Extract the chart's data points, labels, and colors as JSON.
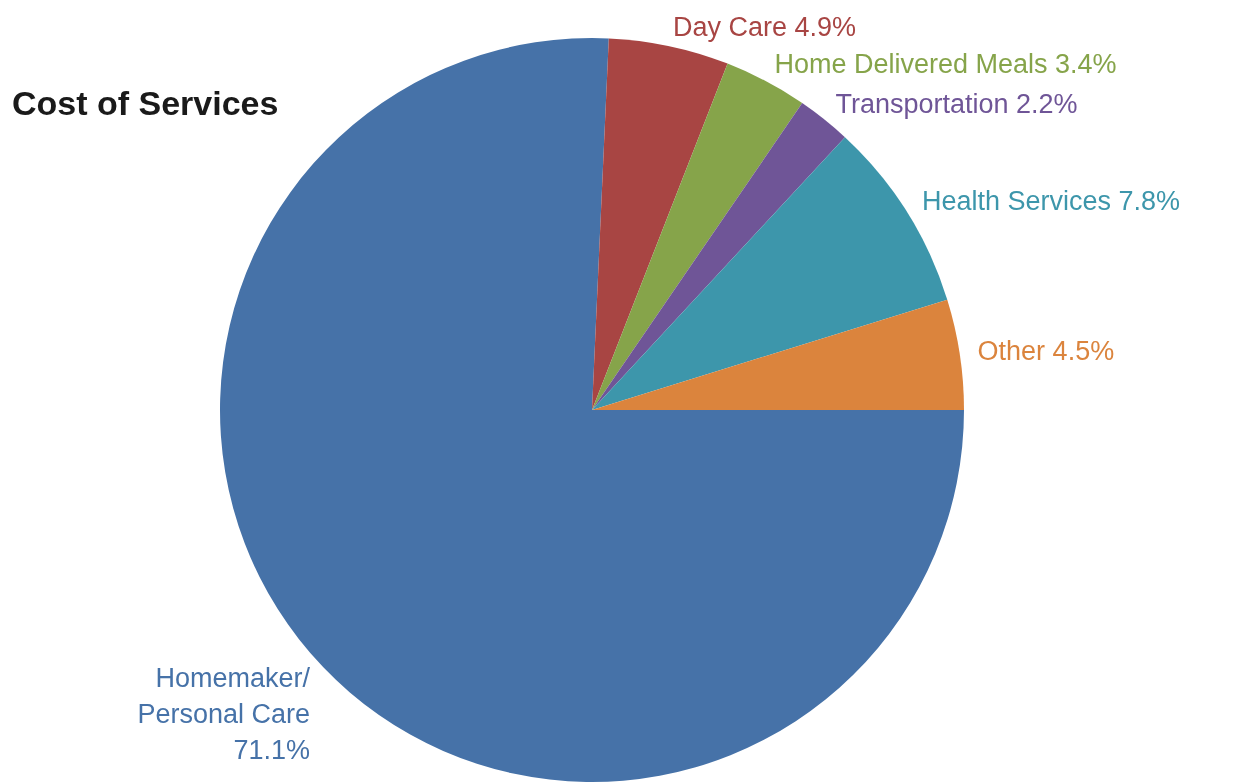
{
  "chart_data": {
    "type": "pie",
    "title": "Cost of Services",
    "categories": [
      "Homemaker/ Personal Care",
      "Day Care",
      "Home Delivered Meals",
      "Transportation",
      "Health Services",
      "Other"
    ],
    "values": [
      71.1,
      4.9,
      3.4,
      2.2,
      7.8,
      4.5
    ],
    "colors": [
      "#4672a8",
      "#a84543",
      "#86a44a",
      "#6f5597",
      "#3d96ab",
      "#db843d"
    ],
    "value_labels": [
      "71.1%",
      "4.9%",
      "3.4%",
      "2.2%",
      "7.8%",
      "4.5%"
    ]
  }
}
